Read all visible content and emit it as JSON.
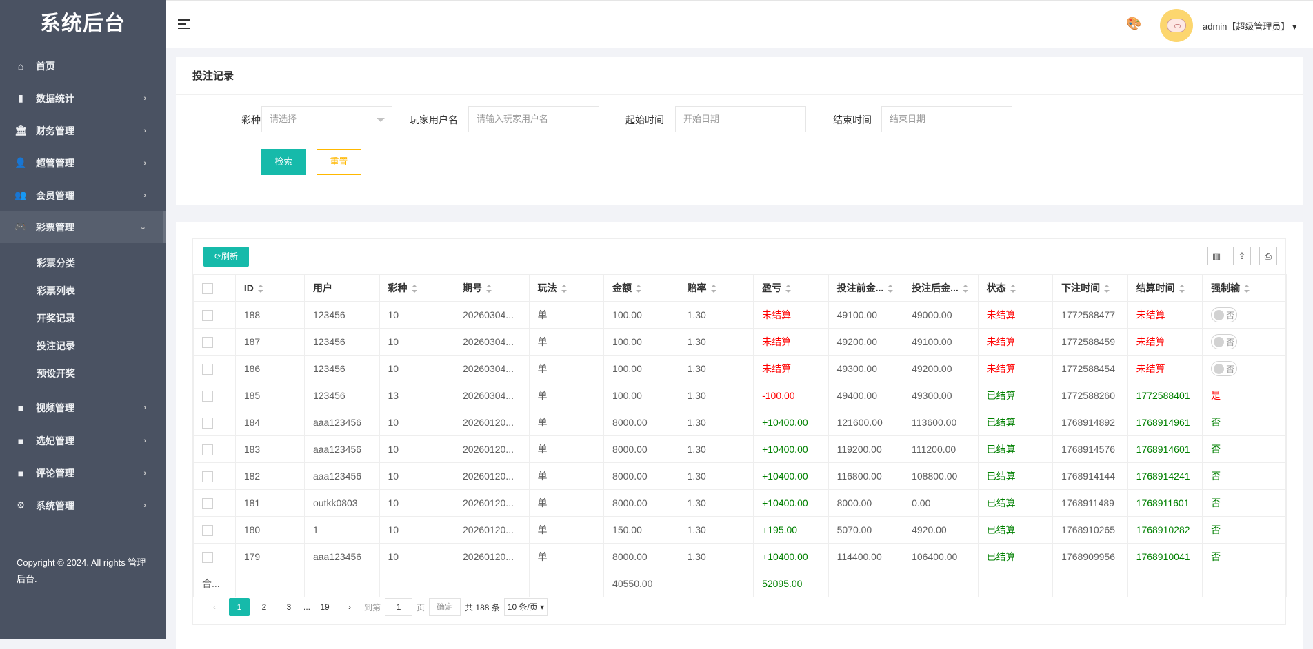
{
  "sidebar": {
    "logo": "系统后台",
    "items": [
      {
        "label": "首页",
        "icon": "home-icon",
        "glyph": "⌂",
        "arrow": ""
      },
      {
        "label": "数据统计",
        "icon": "bar-chart-icon",
        "glyph": "▮",
        "arrow": "›"
      },
      {
        "label": "财务管理",
        "icon": "bank-icon",
        "glyph": "🏛",
        "arrow": "›"
      },
      {
        "label": "超管管理",
        "icon": "user-icon",
        "glyph": "👤",
        "arrow": "›"
      },
      {
        "label": "会员管理",
        "icon": "users-icon",
        "glyph": "👥",
        "arrow": "›"
      },
      {
        "label": "彩票管理",
        "icon": "gamepad-icon",
        "glyph": "🎮",
        "arrow": "⌄"
      },
      {
        "label": "视频管理",
        "icon": "video-icon",
        "glyph": "■",
        "arrow": "›"
      },
      {
        "label": "选妃管理",
        "icon": "video-icon",
        "glyph": "■",
        "arrow": "›"
      },
      {
        "label": "评论管理",
        "icon": "video-icon",
        "glyph": "■",
        "arrow": "›"
      },
      {
        "label": "系统管理",
        "icon": "gear-icon",
        "glyph": "⚙",
        "arrow": "›"
      }
    ],
    "sub_items": [
      "彩票分类",
      "彩票列表",
      "开奖记录",
      "投注记录",
      "预设开奖"
    ],
    "copyright": "Copyright © 2024. All rights 管理后台."
  },
  "header": {
    "user": "admin【超级管理员】",
    "user_caret": "▾"
  },
  "filter": {
    "title": "投注记录",
    "lottery_label": "彩种",
    "lottery_placeholder": "请选择",
    "player_label": "玩家用户名",
    "player_placeholder": "请输入玩家用户名",
    "start_label": "起始时间",
    "start_placeholder": "开始日期",
    "end_label": "结束时间",
    "end_placeholder": "结束日期",
    "search": "检索",
    "reset": "重置"
  },
  "table": {
    "refresh": "⟳刷新",
    "tools": [
      "▥",
      "⇪",
      "⎙"
    ],
    "columns": [
      "ID",
      "用户",
      "彩种",
      "期号",
      "玩法",
      "金额",
      "赔率",
      "盈亏",
      "投注前金...",
      "投注后金...",
      "状态",
      "下注时间",
      "结算时间",
      "强制输"
    ],
    "sortable": [
      true,
      false,
      true,
      true,
      true,
      true,
      true,
      true,
      true,
      true,
      true,
      true,
      true,
      true
    ],
    "rows": [
      {
        "id": "188",
        "user": "123456",
        "lottery": "10",
        "period": "20260304...",
        "play": "单",
        "amount": "100.00",
        "odds": "1.30",
        "profit": "未结算",
        "profit_color": "red",
        "before": "49100.00",
        "after": "49000.00",
        "status": "未结算",
        "status_color": "red",
        "bet_time": "1772588477",
        "settle_time": "未结算",
        "settle_color": "red",
        "force": "否",
        "force_type": "switch",
        "force_color": ""
      },
      {
        "id": "187",
        "user": "123456",
        "lottery": "10",
        "period": "20260304...",
        "play": "单",
        "amount": "100.00",
        "odds": "1.30",
        "profit": "未结算",
        "profit_color": "red",
        "before": "49200.00",
        "after": "49100.00",
        "status": "未结算",
        "status_color": "red",
        "bet_time": "1772588459",
        "settle_time": "未结算",
        "settle_color": "red",
        "force": "否",
        "force_type": "switch",
        "force_color": ""
      },
      {
        "id": "186",
        "user": "123456",
        "lottery": "10",
        "period": "20260304...",
        "play": "单",
        "amount": "100.00",
        "odds": "1.30",
        "profit": "未结算",
        "profit_color": "red",
        "before": "49300.00",
        "after": "49200.00",
        "status": "未结算",
        "status_color": "red",
        "bet_time": "1772588454",
        "settle_time": "未结算",
        "settle_color": "red",
        "force": "否",
        "force_type": "switch",
        "force_color": ""
      },
      {
        "id": "185",
        "user": "123456",
        "lottery": "13",
        "period": "20260304...",
        "play": "单",
        "amount": "100.00",
        "odds": "1.30",
        "profit": "-100.00",
        "profit_color": "red",
        "before": "49400.00",
        "after": "49300.00",
        "status": "已结算",
        "status_color": "green",
        "bet_time": "1772588260",
        "settle_time": "1772588401",
        "settle_color": "green",
        "force": "是",
        "force_type": "text",
        "force_color": "red"
      },
      {
        "id": "184",
        "user": "aaa123456",
        "lottery": "10",
        "period": "20260120...",
        "play": "单",
        "amount": "8000.00",
        "odds": "1.30",
        "profit": "+10400.00",
        "profit_color": "green",
        "before": "121600.00",
        "after": "113600.00",
        "status": "已结算",
        "status_color": "green",
        "bet_time": "1768914892",
        "settle_time": "1768914961",
        "settle_color": "green",
        "force": "否",
        "force_type": "text",
        "force_color": "green"
      },
      {
        "id": "183",
        "user": "aaa123456",
        "lottery": "10",
        "period": "20260120...",
        "play": "单",
        "amount": "8000.00",
        "odds": "1.30",
        "profit": "+10400.00",
        "profit_color": "green",
        "before": "119200.00",
        "after": "111200.00",
        "status": "已结算",
        "status_color": "green",
        "bet_time": "1768914576",
        "settle_time": "1768914601",
        "settle_color": "green",
        "force": "否",
        "force_type": "text",
        "force_color": "green"
      },
      {
        "id": "182",
        "user": "aaa123456",
        "lottery": "10",
        "period": "20260120...",
        "play": "单",
        "amount": "8000.00",
        "odds": "1.30",
        "profit": "+10400.00",
        "profit_color": "green",
        "before": "116800.00",
        "after": "108800.00",
        "status": "已结算",
        "status_color": "green",
        "bet_time": "1768914144",
        "settle_time": "1768914241",
        "settle_color": "green",
        "force": "否",
        "force_type": "text",
        "force_color": "green"
      },
      {
        "id": "181",
        "user": "outkk0803",
        "lottery": "10",
        "period": "20260120...",
        "play": "单",
        "amount": "8000.00",
        "odds": "1.30",
        "profit": "+10400.00",
        "profit_color": "green",
        "before": "8000.00",
        "after": "0.00",
        "status": "已结算",
        "status_color": "green",
        "bet_time": "1768911489",
        "settle_time": "1768911601",
        "settle_color": "green",
        "force": "否",
        "force_type": "text",
        "force_color": "green"
      },
      {
        "id": "180",
        "user": "1",
        "lottery": "10",
        "period": "20260120...",
        "play": "单",
        "amount": "150.00",
        "odds": "1.30",
        "profit": "+195.00",
        "profit_color": "green",
        "before": "5070.00",
        "after": "4920.00",
        "status": "已结算",
        "status_color": "green",
        "bet_time": "1768910265",
        "settle_time": "1768910282",
        "settle_color": "green",
        "force": "否",
        "force_type": "text",
        "force_color": "green"
      },
      {
        "id": "179",
        "user": "aaa123456",
        "lottery": "10",
        "period": "20260120...",
        "play": "单",
        "amount": "8000.00",
        "odds": "1.30",
        "profit": "+10400.00",
        "profit_color": "green",
        "before": "114400.00",
        "after": "106400.00",
        "status": "已结算",
        "status_color": "green",
        "bet_time": "1768909956",
        "settle_time": "1768910041",
        "settle_color": "green",
        "force": "否",
        "force_type": "text",
        "force_color": "green"
      }
    ],
    "total": {
      "label": "合...",
      "amount": "40550.00",
      "profit": "52095.00"
    }
  },
  "pager": {
    "prev": "‹",
    "pages": [
      "1",
      "2",
      "3"
    ],
    "ellipsis": "...",
    "last": "19",
    "next": "›",
    "goto": "到第",
    "page_value": "1",
    "page_unit": "页",
    "confirm": "确定",
    "total": "共 188 条",
    "page_size": "10 条/页 ▾",
    "current": "1"
  },
  "colors": {
    "primary": "#16baaa",
    "warn": "#ffb800",
    "sidebar": "#4a5262",
    "loss": "#ff0000",
    "win": "#008000"
  }
}
